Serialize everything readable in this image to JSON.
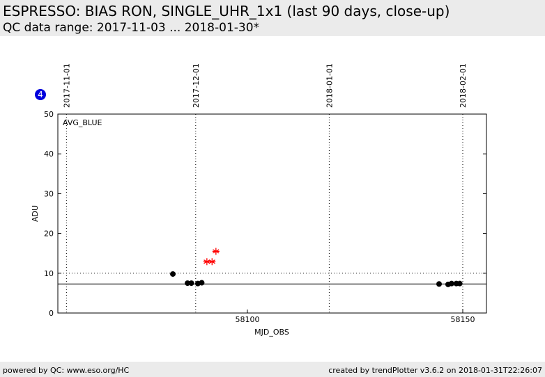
{
  "header": {
    "title": "ESPRESSO: BIAS RON, SINGLE_UHR_1x1 (last 90 days, close-up)",
    "subtitle": "QC data range: 2017-11-03 ... 2018-01-30*"
  },
  "chart_data": {
    "type": "scatter",
    "badge": "4",
    "panel_label": "AVG_BLUE",
    "xlabel": "MJD_OBS",
    "ylabel": "ADU",
    "xlim": [
      58056,
      58155.5
    ],
    "xticks": [
      58100,
      58150
    ],
    "x2ticks": [
      {
        "value": 58058,
        "label": "2017-11-01"
      },
      {
        "value": 58088,
        "label": "2017-12-01"
      },
      {
        "value": 58119,
        "label": "2018-01-01"
      },
      {
        "value": 58150,
        "label": "2018-02-01"
      }
    ],
    "ylim": [
      0,
      50
    ],
    "yticks": [
      0,
      10,
      20,
      30,
      40,
      50
    ],
    "hlines": [
      {
        "value": 7.3,
        "style": "solid"
      },
      {
        "value": 10,
        "style": "dotted"
      }
    ],
    "series": [
      {
        "color": "#000000",
        "marker": "circle",
        "x": [
          58082.7,
          58086.1,
          58087.0,
          58088.5,
          58089.4,
          58144.5,
          58146.6,
          58147.4,
          58148.5,
          58149.3
        ],
        "values": [
          9.8,
          7.5,
          7.5,
          7.4,
          7.6,
          7.3,
          7.2,
          7.4,
          7.4,
          7.4
        ]
      },
      {
        "color": "#ff0000",
        "marker": "asterisk",
        "x": [
          58090.6,
          58091.8,
          58092.7
        ],
        "values": [
          12.9,
          12.9,
          15.5
        ]
      }
    ]
  },
  "footer": {
    "left": "powered by QC: www.eso.org/HC",
    "right": "created by trendPlotter v3.6.2 on 2018-01-31T22:26:07"
  }
}
